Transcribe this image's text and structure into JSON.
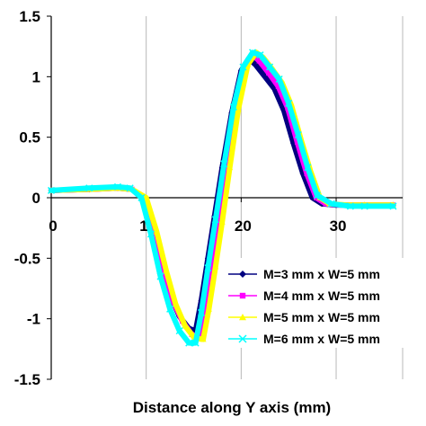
{
  "chart_data": {
    "type": "line",
    "title": "",
    "xlabel": "Distance along Y axis (mm)",
    "ylabel": "",
    "xlim": [
      0,
      37
    ],
    "ylim": [
      -1.5,
      1.5
    ],
    "x_ticks": [
      0,
      10,
      20,
      30
    ],
    "x_tick_labels": [
      "0",
      "10",
      "20",
      "30"
    ],
    "y_ticks": [
      1.5,
      1,
      0.5,
      0,
      -0.5,
      -1,
      -1.5
    ],
    "y_tick_labels": [
      "1.5",
      "1",
      "0.5",
      "0",
      "-0.5",
      "-1",
      "-1.5"
    ],
    "grid": "vertical",
    "legend_position": "bottom-right",
    "series": [
      {
        "name": "M=3 mm x W=5 mm",
        "color": "#000080",
        "marker": "diamond",
        "x": [
          0,
          4,
          7,
          8.5,
          9.5,
          10.5,
          11.5,
          12.5,
          13.5,
          14.5,
          15.2,
          15.8,
          16.5,
          17.2,
          18,
          19,
          20,
          20.8,
          21.5,
          22.5,
          23.5,
          24.5,
          25.5,
          26.5,
          27.5,
          28.5,
          30,
          33,
          36
        ],
        "y": [
          0.06,
          0.07,
          0.08,
          0.07,
          0.0,
          -0.25,
          -0.55,
          -0.8,
          -0.98,
          -1.08,
          -1.1,
          -0.85,
          -0.5,
          -0.15,
          0.25,
          0.7,
          1.05,
          1.15,
          1.1,
          1.0,
          0.9,
          0.72,
          0.45,
          0.2,
          0.0,
          -0.05,
          -0.06,
          -0.06,
          -0.06
        ]
      },
      {
        "name": "M=4 mm x W=5 mm",
        "color": "#ff00ff",
        "marker": "square",
        "x": [
          0,
          4,
          7,
          8.5,
          9.7,
          10.8,
          11.8,
          12.8,
          13.8,
          14.8,
          15.6,
          16.2,
          16.9,
          17.6,
          18.4,
          19.3,
          20.3,
          21.2,
          21.9,
          22.9,
          23.9,
          24.9,
          25.9,
          26.9,
          27.9,
          28.9,
          30.5,
          33,
          36
        ],
        "y": [
          0.06,
          0.07,
          0.08,
          0.07,
          0.0,
          -0.27,
          -0.58,
          -0.85,
          -1.02,
          -1.13,
          -1.15,
          -0.9,
          -0.55,
          -0.18,
          0.25,
          0.72,
          1.08,
          1.18,
          1.13,
          1.03,
          0.92,
          0.74,
          0.46,
          0.2,
          0.0,
          -0.05,
          -0.06,
          -0.06,
          -0.06
        ]
      },
      {
        "name": "M=5 mm x W=5 mm",
        "color": "#ffff00",
        "marker": "triangle",
        "x": [
          0,
          4,
          7,
          8.5,
          10,
          11.1,
          12.1,
          13.1,
          14.1,
          15.1,
          16,
          16.6,
          17.3,
          18,
          18.8,
          19.7,
          20.7,
          21.6,
          22.3,
          23.3,
          24.3,
          25.3,
          26.3,
          27.3,
          28.3,
          29.3,
          31,
          33,
          36
        ],
        "y": [
          0.06,
          0.07,
          0.08,
          0.07,
          0.0,
          -0.28,
          -0.6,
          -0.88,
          -1.06,
          -1.16,
          -1.17,
          -0.92,
          -0.57,
          -0.2,
          0.25,
          0.73,
          1.1,
          1.2,
          1.16,
          1.06,
          0.95,
          0.76,
          0.48,
          0.22,
          0.0,
          -0.05,
          -0.06,
          -0.06,
          -0.06
        ]
      },
      {
        "name": "M=6 mm x W=5 mm",
        "color": "#00ffff",
        "marker": "x",
        "x": [
          0,
          4,
          7,
          8.3,
          9.5,
          10.5,
          11.5,
          12.5,
          13.5,
          14.5,
          15.2,
          15.8,
          16.5,
          17.3,
          18.2,
          19.2,
          20.2,
          21.2,
          22,
          23,
          24,
          25,
          26,
          27,
          28,
          29.5,
          31.5,
          33,
          36
        ],
        "y": [
          0.06,
          0.08,
          0.09,
          0.08,
          0.0,
          -0.3,
          -0.65,
          -0.92,
          -1.1,
          -1.2,
          -1.2,
          -0.95,
          -0.58,
          -0.18,
          0.28,
          0.75,
          1.08,
          1.2,
          1.18,
          1.08,
          0.98,
          0.78,
          0.52,
          0.25,
          0.02,
          -0.05,
          -0.07,
          -0.07,
          -0.07
        ]
      }
    ]
  }
}
